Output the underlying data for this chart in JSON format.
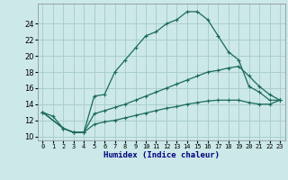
{
  "xlabel": "Humidex (Indice chaleur)",
  "bg_color": "#cce8e8",
  "grid_color": "#aacece",
  "line_color": "#1a6a5a",
  "line1_x": [
    0,
    1,
    2,
    3,
    4,
    5,
    6,
    7,
    8,
    9,
    10,
    11,
    12,
    13,
    14,
    15,
    16,
    17,
    18,
    19,
    20,
    21,
    22,
    23
  ],
  "line1_y": [
    13.0,
    12.5,
    11.0,
    10.5,
    10.5,
    15.0,
    15.2,
    18.0,
    19.5,
    21.0,
    22.5,
    23.0,
    24.0,
    24.5,
    25.5,
    25.5,
    24.5,
    22.5,
    20.5,
    19.5,
    16.2,
    15.5,
    14.5,
    14.5
  ],
  "line2_x": [
    0,
    2,
    3,
    4,
    5,
    6,
    7,
    8,
    9,
    10,
    11,
    12,
    13,
    14,
    15,
    16,
    17,
    18,
    19,
    20,
    21,
    22,
    23
  ],
  "line2_y": [
    13.0,
    11.0,
    10.5,
    10.5,
    12.8,
    13.2,
    13.6,
    14.0,
    14.5,
    15.0,
    15.5,
    16.0,
    16.5,
    17.0,
    17.5,
    18.0,
    18.2,
    18.5,
    18.7,
    17.5,
    16.2,
    15.2,
    14.5
  ],
  "line3_x": [
    0,
    2,
    3,
    4,
    5,
    6,
    7,
    8,
    9,
    10,
    11,
    12,
    13,
    14,
    15,
    16,
    17,
    18,
    19,
    20,
    21,
    22,
    23
  ],
  "line3_y": [
    13.0,
    11.0,
    10.5,
    10.5,
    11.5,
    11.8,
    12.0,
    12.3,
    12.6,
    12.9,
    13.2,
    13.5,
    13.7,
    14.0,
    14.2,
    14.4,
    14.5,
    14.5,
    14.5,
    14.2,
    14.0,
    14.0,
    14.5
  ],
  "ylim": [
    9.5,
    26.5
  ],
  "xlim": [
    -0.5,
    23.5
  ],
  "yticks": [
    10,
    12,
    14,
    16,
    18,
    20,
    22,
    24
  ],
  "xtick_labels": [
    "0",
    "1",
    "2",
    "3",
    "4",
    "5",
    "6",
    "7",
    "8",
    "9",
    "10",
    "11",
    "12",
    "13",
    "14",
    "15",
    "16",
    "17",
    "18",
    "19",
    "20",
    "21",
    "22",
    "23"
  ]
}
